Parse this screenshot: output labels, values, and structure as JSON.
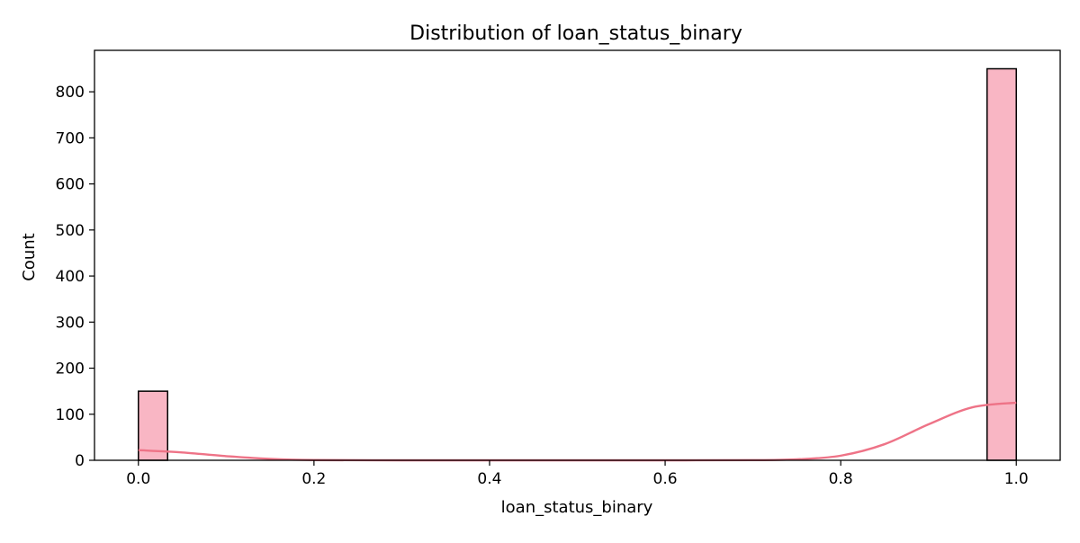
{
  "chart_data": {
    "type": "bar",
    "title": "Distribution of loan_status_binary",
    "xlabel": "loan_status_binary",
    "ylabel": "Count",
    "xlim": [
      -0.05,
      1.05
    ],
    "ylim": [
      0,
      890
    ],
    "x_ticks": [
      "0.0",
      "0.2",
      "0.4",
      "0.6",
      "0.8",
      "1.0"
    ],
    "y_ticks": [
      "0",
      "100",
      "200",
      "300",
      "400",
      "500",
      "600",
      "700",
      "800"
    ],
    "grid": false,
    "legend": "none",
    "bin_width": 0.0333,
    "bars": [
      {
        "x_start": 0.0,
        "x_end": 0.0333,
        "count": 150
      },
      {
        "x_start": 0.9667,
        "x_end": 1.0,
        "count": 850
      }
    ],
    "kde_curve": {
      "x": [
        0.0,
        0.05,
        0.1,
        0.15,
        0.2,
        0.3,
        0.4,
        0.5,
        0.6,
        0.7,
        0.75,
        0.8,
        0.85,
        0.9,
        0.95,
        1.0
      ],
      "y": [
        22,
        17,
        9,
        3,
        0.5,
        0,
        0,
        0,
        0,
        0.3,
        2,
        10,
        35,
        78,
        115,
        125
      ]
    },
    "colors": {
      "bar_fill": "#f9b6c4",
      "bar_edge": "#000000",
      "kde_line": "#ee7387"
    }
  }
}
